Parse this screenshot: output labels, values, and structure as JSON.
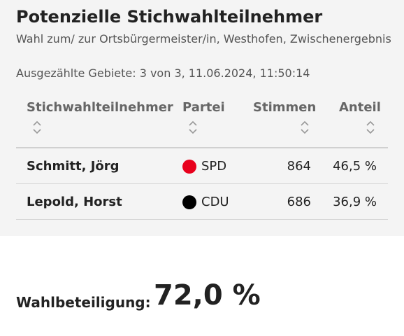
{
  "header": {
    "title": "Potenzielle Stichwahlteilnehmer",
    "subtitle": "Wahl zum/ zur Ortsbürgermeister/in, Westhofen, Zwischenergebnis",
    "status": "Ausgezählte Gebiete: 3 von 3, 11.06.2024, 11:50:14"
  },
  "table": {
    "columns": [
      "Stichwahlteilnehmer",
      "Partei",
      "Stimmen",
      "Anteil"
    ],
    "rows": [
      {
        "name": "Schmitt, Jörg",
        "party": "SPD",
        "party_color": "#e8001c",
        "votes": "864",
        "share": "46,5 %"
      },
      {
        "name": "Lepold, Horst",
        "party": "CDU",
        "party_color": "#000000",
        "votes": "686",
        "share": "36,9 %"
      }
    ]
  },
  "turnout": {
    "label": "Wahlbeteiligung:",
    "value": "72,0 %"
  },
  "icons": {
    "sort": "sort-updown-icon",
    "party_marker": "party-color-dot-icon"
  }
}
